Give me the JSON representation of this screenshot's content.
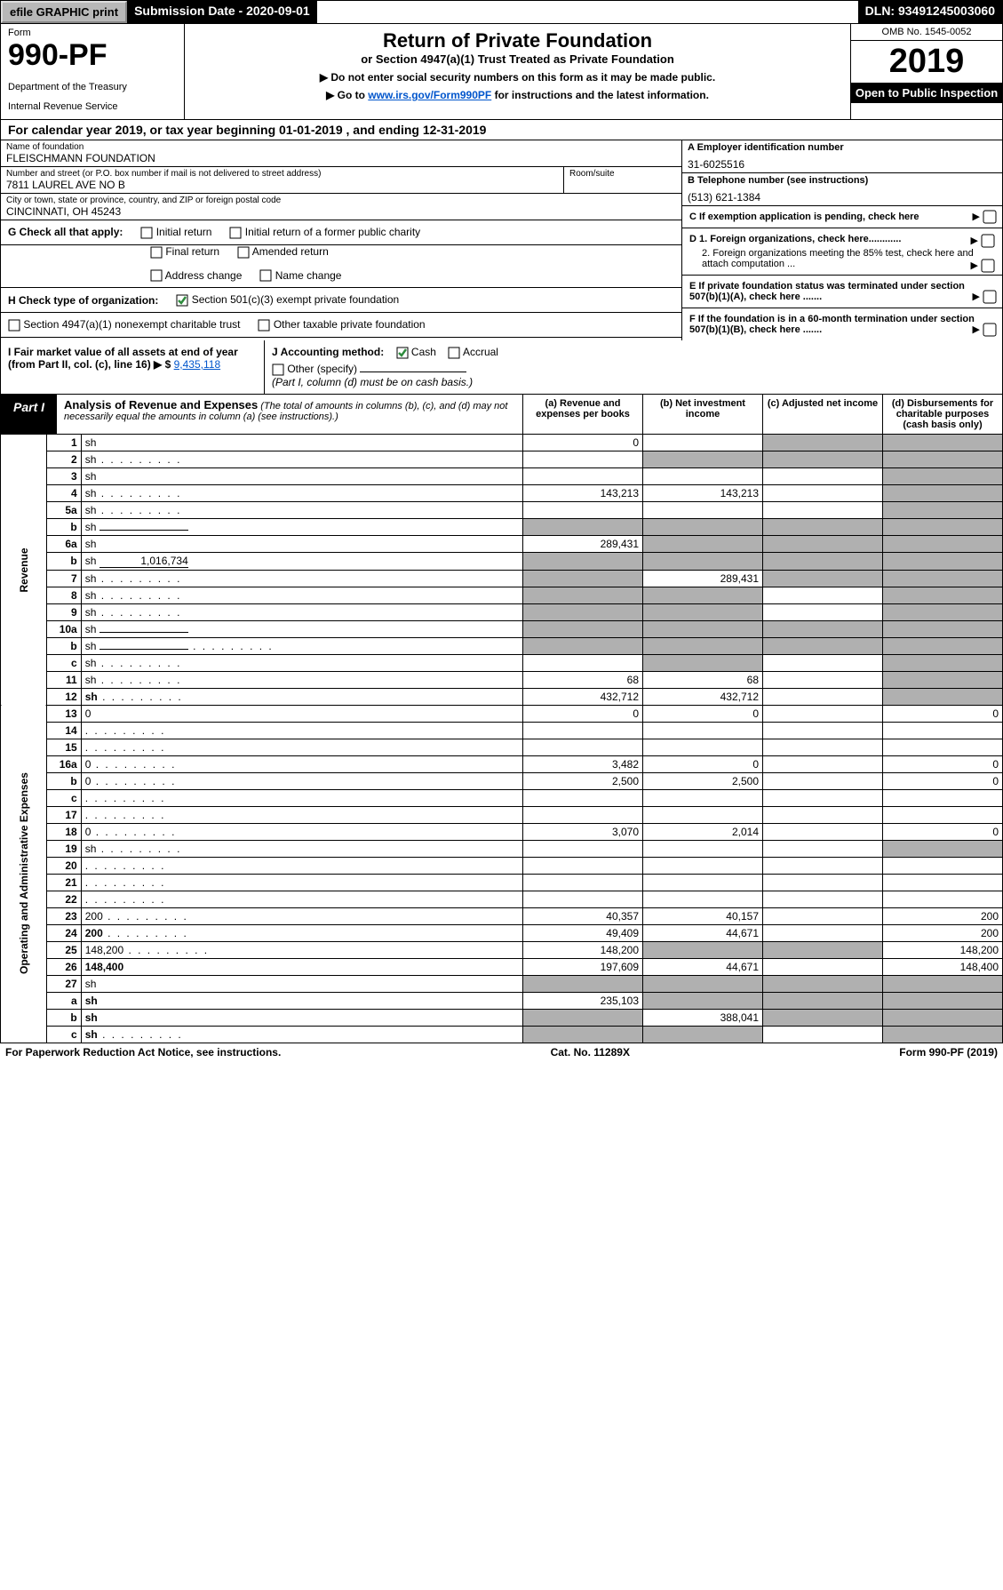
{
  "top": {
    "efile": "efile GRAPHIC print",
    "subdate_label": "Submission Date - 2020-09-01",
    "dln": "DLN: 93491245003060"
  },
  "header": {
    "form": "Form",
    "form_no": "990-PF",
    "dept": "Department of the Treasury",
    "irs": "Internal Revenue Service",
    "title": "Return of Private Foundation",
    "subtitle": "or Section 4947(a)(1) Trust Treated as Private Foundation",
    "note1": "▶ Do not enter social security numbers on this form as it may be made public.",
    "note2_pre": "▶ Go to ",
    "note2_link": "www.irs.gov/Form990PF",
    "note2_post": " for instructions and the latest information.",
    "omb": "OMB No. 1545-0052",
    "year": "2019",
    "open": "Open to Public Inspection"
  },
  "calyear": "For calendar year 2019, or tax year beginning 01-01-2019                        , and ending 12-31-2019",
  "org": {
    "name_label": "Name of foundation",
    "name": "FLEISCHMANN FOUNDATION",
    "addr_label": "Number and street (or P.O. box number if mail is not delivered to street address)",
    "addr": "7811 LAUREL AVE NO B",
    "room_label": "Room/suite",
    "city_label": "City or town, state or province, country, and ZIP or foreign postal code",
    "city": "CINCINNATI, OH  45243",
    "ein_label": "A Employer identification number",
    "ein": "31-6025516",
    "tel_label": "B Telephone number (see instructions)",
    "tel": "(513) 621-1384",
    "c_label": "C If exemption application is pending, check here",
    "d1": "D 1. Foreign organizations, check here............",
    "d2": "2. Foreign organizations meeting the 85% test, check here and attach computation ...",
    "e": "E  If private foundation status was terminated under section 507(b)(1)(A), check here .......",
    "f": "F  If the foundation is in a 60-month termination under section 507(b)(1)(B), check here .......",
    "g_label": "G Check all that apply:",
    "g_opts": [
      "Initial return",
      "Initial return of a former public charity",
      "Final return",
      "Amended return",
      "Address change",
      "Name change"
    ],
    "h_label": "H Check type of organization:",
    "h_opt1": "Section 501(c)(3) exempt private foundation",
    "h_opt2": "Section 4947(a)(1) nonexempt charitable trust",
    "h_opt3": "Other taxable private foundation",
    "i_label": "I Fair market value of all assets at end of year (from Part II, col. (c), line 16) ▶ $",
    "i_val": "9,435,118",
    "j_label": "J Accounting method:",
    "j_cash": "Cash",
    "j_accrual": "Accrual",
    "j_other": "Other (specify)",
    "j_note": "(Part I, column (d) must be on cash basis.)"
  },
  "part1": {
    "label": "Part I",
    "title": "Analysis of Revenue and Expenses",
    "note": "(The total of amounts in columns (b), (c), and (d) may not necessarily equal the amounts in column (a) (see instructions).)",
    "col_a": "(a)   Revenue and expenses per books",
    "col_b": "(b)  Net investment income",
    "col_c": "(c)  Adjusted net income",
    "col_d": "(d)  Disbursements for charitable purposes (cash basis only)"
  },
  "side_rev": "Revenue",
  "side_exp": "Operating and Administrative Expenses",
  "rows": [
    {
      "n": "1",
      "d": "sh",
      "a": "0",
      "b": "",
      "c": "sh"
    },
    {
      "n": "2",
      "d": "sh",
      "a": "",
      "b": "sh",
      "c": "sh",
      "dots": true
    },
    {
      "n": "3",
      "d": "sh",
      "a": "",
      "b": "",
      "c": ""
    },
    {
      "n": "4",
      "d": "sh",
      "a": "143,213",
      "b": "143,213",
      "c": "",
      "dots": true
    },
    {
      "n": "5a",
      "d": "sh",
      "a": "",
      "b": "",
      "c": "",
      "dots": true
    },
    {
      "n": "b",
      "d": "sh",
      "a": "sh",
      "b": "sh",
      "c": "sh",
      "inline": ""
    },
    {
      "n": "6a",
      "d": "sh",
      "a": "289,431",
      "b": "sh",
      "c": "sh"
    },
    {
      "n": "b",
      "d": "sh",
      "a": "sh",
      "b": "sh",
      "c": "sh",
      "inline": "1,016,734"
    },
    {
      "n": "7",
      "d": "sh",
      "a": "sh",
      "b": "289,431",
      "c": "sh",
      "dots": true
    },
    {
      "n": "8",
      "d": "sh",
      "a": "sh",
      "b": "sh",
      "c": "",
      "dots": true
    },
    {
      "n": "9",
      "d": "sh",
      "a": "sh",
      "b": "sh",
      "c": "",
      "dots": true
    },
    {
      "n": "10a",
      "d": "sh",
      "a": "sh",
      "b": "sh",
      "c": "sh",
      "inline": ""
    },
    {
      "n": "b",
      "d": "sh",
      "a": "sh",
      "b": "sh",
      "c": "sh",
      "inline": "",
      "dots": true
    },
    {
      "n": "c",
      "d": "sh",
      "a": "",
      "b": "sh",
      "c": "",
      "dots": true
    },
    {
      "n": "11",
      "d": "sh",
      "a": "68",
      "b": "68",
      "c": "",
      "dots": true
    },
    {
      "n": "12",
      "d": "sh",
      "a": "432,712",
      "b": "432,712",
      "c": "",
      "bold": true,
      "dots": true
    }
  ],
  "rows2": [
    {
      "n": "13",
      "d": "0",
      "a": "0",
      "b": "0",
      "c": ""
    },
    {
      "n": "14",
      "d": "",
      "a": "",
      "b": "",
      "c": "",
      "dots": true
    },
    {
      "n": "15",
      "d": "",
      "a": "",
      "b": "",
      "c": "",
      "dots": true
    },
    {
      "n": "16a",
      "d": "0",
      "a": "3,482",
      "b": "0",
      "c": "",
      "dots": true
    },
    {
      "n": "b",
      "d": "0",
      "a": "2,500",
      "b": "2,500",
      "c": "",
      "dots": true
    },
    {
      "n": "c",
      "d": "",
      "a": "",
      "b": "",
      "c": "",
      "dots": true
    },
    {
      "n": "17",
      "d": "",
      "a": "",
      "b": "",
      "c": "",
      "dots": true
    },
    {
      "n": "18",
      "d": "0",
      "a": "3,070",
      "b": "2,014",
      "c": "",
      "dots": true
    },
    {
      "n": "19",
      "d": "sh",
      "a": "",
      "b": "",
      "c": "",
      "dots": true
    },
    {
      "n": "20",
      "d": "",
      "a": "",
      "b": "",
      "c": "",
      "dots": true
    },
    {
      "n": "21",
      "d": "",
      "a": "",
      "b": "",
      "c": "",
      "dots": true
    },
    {
      "n": "22",
      "d": "",
      "a": "",
      "b": "",
      "c": "",
      "dots": true
    },
    {
      "n": "23",
      "d": "200",
      "a": "40,357",
      "b": "40,157",
      "c": "",
      "dots": true
    },
    {
      "n": "24",
      "d": "200",
      "a": "49,409",
      "b": "44,671",
      "c": "",
      "bold": true,
      "dots": true
    },
    {
      "n": "25",
      "d": "148,200",
      "a": "148,200",
      "b": "sh",
      "c": "sh",
      "dots": true
    },
    {
      "n": "26",
      "d": "148,400",
      "a": "197,609",
      "b": "44,671",
      "c": "",
      "bold": true
    },
    {
      "n": "27",
      "d": "sh",
      "a": "sh",
      "b": "sh",
      "c": "sh"
    },
    {
      "n": "a",
      "d": "sh",
      "a": "235,103",
      "b": "sh",
      "c": "sh",
      "bold": true
    },
    {
      "n": "b",
      "d": "sh",
      "a": "sh",
      "b": "388,041",
      "c": "sh",
      "bold": true
    },
    {
      "n": "c",
      "d": "sh",
      "a": "sh",
      "b": "sh",
      "c": "",
      "bold": true,
      "dots": true
    }
  ],
  "footer": {
    "left": "For Paperwork Reduction Act Notice, see instructions.",
    "mid": "Cat. No. 11289X",
    "right": "Form 990-PF (2019)"
  },
  "colors": {
    "accent": "#0055cc",
    "shade": "#b0b0b0",
    "check_green": "#2e8b3d"
  }
}
